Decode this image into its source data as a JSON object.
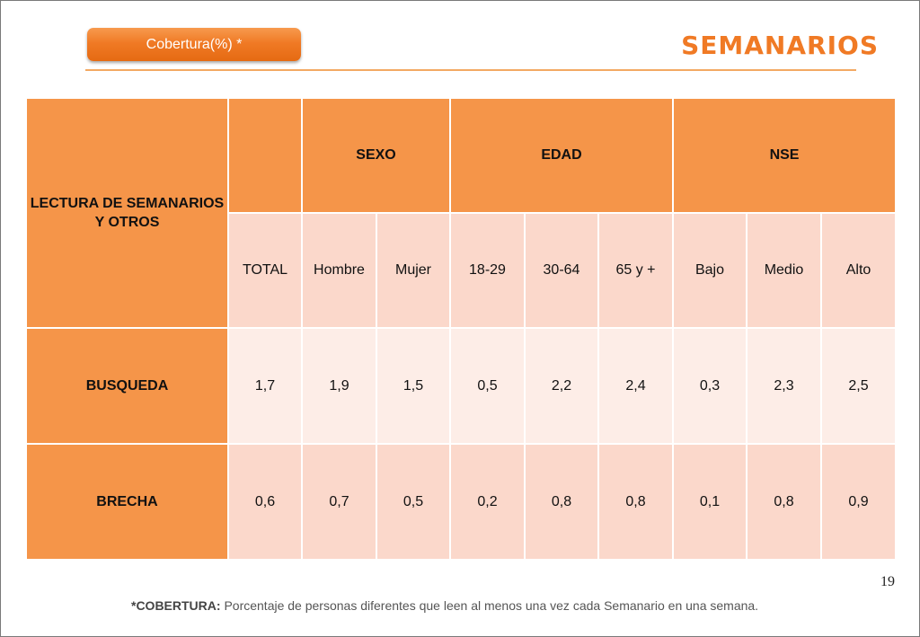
{
  "header": {
    "pill_label": "Cobertura(%) *",
    "title": "SEMANARIOS"
  },
  "table": {
    "stub_header": "LECTURA DE SEMANARIOS Y OTROS",
    "groups": [
      {
        "label": "SEXO"
      },
      {
        "label": "EDAD"
      },
      {
        "label": "NSE"
      }
    ],
    "columns": [
      "TOTAL",
      "Hombre",
      "Mujer",
      "18-29",
      "30-64",
      "65 y +",
      "Bajo",
      "Medio",
      "Alto"
    ],
    "rows": [
      {
        "label": "BUSQUEDA",
        "values": [
          "1,7",
          "1,9",
          "1,5",
          "0,5",
          "2,2",
          "2,4",
          "0,3",
          "2,3",
          "2,5"
        ]
      },
      {
        "label": "BRECHA",
        "values": [
          "0,6",
          "0,7",
          "0,5",
          "0,2",
          "0,8",
          "0,8",
          "0,1",
          "0,8",
          "0,9"
        ]
      }
    ]
  },
  "footer": {
    "page_number": "19",
    "note_label": "*COBERTURA:",
    "note_text": "Porcentaje de personas diferentes que leen al menos una vez cada Semanario en una semana."
  },
  "colors": {
    "accent_orange": "#f07a25",
    "header_cell": "#f59549",
    "cell_light": "#fbd8cb",
    "cell_lighter": "#fdede7"
  }
}
